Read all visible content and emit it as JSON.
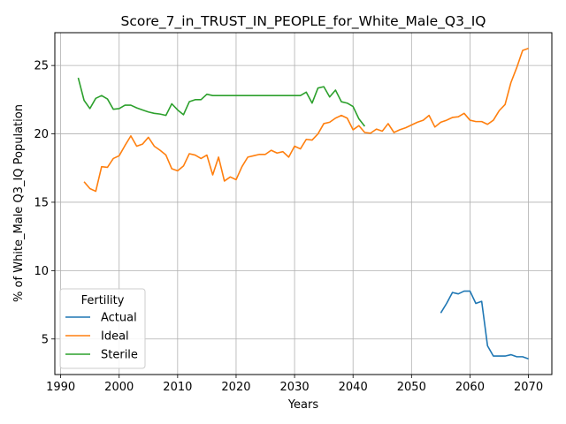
{
  "chart_data": {
    "type": "line",
    "title": "Score_7_in_TRUST_IN_PEOPLE_for_White_Male_Q3_IQ",
    "xlabel": "Years",
    "ylabel": "% of White_Male Q3_IQ Population",
    "xlim": [
      1989,
      2074
    ],
    "ylim": [
      2.4,
      27.4
    ],
    "xticks": [
      1990,
      2000,
      2010,
      2020,
      2030,
      2040,
      2050,
      2060,
      2070
    ],
    "yticks": [
      5,
      10,
      15,
      20,
      25
    ],
    "grid": true,
    "legend": {
      "title": "Fertility",
      "placement": "lower-left"
    },
    "series": [
      {
        "name": "Actual",
        "color": "#1f77b4",
        "points": [
          [
            2055,
            6.9
          ],
          [
            2056,
            7.6
          ],
          [
            2057,
            8.4
          ],
          [
            2058,
            8.3
          ],
          [
            2059,
            8.5
          ],
          [
            2060,
            8.5
          ],
          [
            2061,
            7.6
          ],
          [
            2062,
            7.75
          ],
          [
            2063,
            4.5
          ],
          [
            2064,
            3.75
          ],
          [
            2065,
            3.75
          ],
          [
            2066,
            3.75
          ],
          [
            2067,
            3.85
          ],
          [
            2068,
            3.7
          ],
          [
            2069,
            3.7
          ],
          [
            2070,
            3.55
          ]
        ]
      },
      {
        "name": "Ideal",
        "color": "#ff7f0e",
        "points": [
          [
            1994,
            16.5
          ],
          [
            1995,
            16.0
          ],
          [
            1996,
            15.8
          ],
          [
            1997,
            17.6
          ],
          [
            1998,
            17.55
          ],
          [
            1999,
            18.2
          ],
          [
            2000,
            18.4
          ],
          [
            2001,
            19.15
          ],
          [
            2002,
            19.85
          ],
          [
            2003,
            19.1
          ],
          [
            2004,
            19.25
          ],
          [
            2005,
            19.75
          ],
          [
            2006,
            19.1
          ],
          [
            2007,
            18.8
          ],
          [
            2008,
            18.45
          ],
          [
            2009,
            17.45
          ],
          [
            2010,
            17.3
          ],
          [
            2011,
            17.65
          ],
          [
            2012,
            18.55
          ],
          [
            2013,
            18.45
          ],
          [
            2014,
            18.2
          ],
          [
            2015,
            18.45
          ],
          [
            2016,
            17.0
          ],
          [
            2017,
            18.3
          ],
          [
            2018,
            16.55
          ],
          [
            2019,
            16.85
          ],
          [
            2020,
            16.65
          ],
          [
            2021,
            17.6
          ],
          [
            2022,
            18.3
          ],
          [
            2023,
            18.4
          ],
          [
            2024,
            18.5
          ],
          [
            2025,
            18.5
          ],
          [
            2026,
            18.8
          ],
          [
            2027,
            18.6
          ],
          [
            2028,
            18.7
          ],
          [
            2029,
            18.3
          ],
          [
            2030,
            19.1
          ],
          [
            2031,
            18.9
          ],
          [
            2032,
            19.6
          ],
          [
            2033,
            19.55
          ],
          [
            2034,
            20.0
          ],
          [
            2035,
            20.75
          ],
          [
            2036,
            20.85
          ],
          [
            2037,
            21.15
          ],
          [
            2038,
            21.35
          ],
          [
            2039,
            21.15
          ],
          [
            2040,
            20.3
          ],
          [
            2041,
            20.6
          ],
          [
            2042,
            20.1
          ],
          [
            2043,
            20.05
          ],
          [
            2044,
            20.35
          ],
          [
            2045,
            20.2
          ],
          [
            2046,
            20.75
          ],
          [
            2047,
            20.1
          ],
          [
            2048,
            20.3
          ],
          [
            2049,
            20.45
          ],
          [
            2050,
            20.65
          ],
          [
            2051,
            20.85
          ],
          [
            2052,
            21.0
          ],
          [
            2053,
            21.35
          ],
          [
            2054,
            20.5
          ],
          [
            2055,
            20.85
          ],
          [
            2056,
            21.0
          ],
          [
            2057,
            21.2
          ],
          [
            2058,
            21.25
          ],
          [
            2059,
            21.5
          ],
          [
            2060,
            21.0
          ],
          [
            2061,
            20.9
          ],
          [
            2062,
            20.9
          ],
          [
            2063,
            20.7
          ],
          [
            2064,
            21.0
          ],
          [
            2065,
            21.7
          ],
          [
            2066,
            22.15
          ],
          [
            2067,
            23.75
          ],
          [
            2068,
            24.85
          ],
          [
            2069,
            26.1
          ],
          [
            2070,
            26.25
          ]
        ]
      },
      {
        "name": "Sterile",
        "color": "#2ca02c",
        "points": [
          [
            1993,
            24.1
          ],
          [
            1994,
            22.45
          ],
          [
            1995,
            21.85
          ],
          [
            1996,
            22.6
          ],
          [
            1997,
            22.8
          ],
          [
            1998,
            22.55
          ],
          [
            1999,
            21.8
          ],
          [
            2000,
            21.85
          ],
          [
            2001,
            22.1
          ],
          [
            2002,
            22.1
          ],
          [
            2003,
            21.9
          ],
          [
            2004,
            21.75
          ],
          [
            2005,
            21.6
          ],
          [
            2006,
            21.5
          ],
          [
            2007,
            21.45
          ],
          [
            2008,
            21.35
          ],
          [
            2009,
            22.2
          ],
          [
            2010,
            21.75
          ],
          [
            2011,
            21.4
          ],
          [
            2012,
            22.35
          ],
          [
            2013,
            22.5
          ],
          [
            2014,
            22.5
          ],
          [
            2015,
            22.9
          ],
          [
            2016,
            22.8
          ],
          [
            2017,
            22.8
          ],
          [
            2018,
            22.8
          ],
          [
            2019,
            22.8
          ],
          [
            2020,
            22.8
          ],
          [
            2021,
            22.8
          ],
          [
            2022,
            22.8
          ],
          [
            2023,
            22.8
          ],
          [
            2024,
            22.8
          ],
          [
            2025,
            22.8
          ],
          [
            2026,
            22.8
          ],
          [
            2027,
            22.8
          ],
          [
            2028,
            22.8
          ],
          [
            2029,
            22.8
          ],
          [
            2030,
            22.8
          ],
          [
            2031,
            22.8
          ],
          [
            2032,
            23.05
          ],
          [
            2033,
            22.25
          ],
          [
            2034,
            23.35
          ],
          [
            2035,
            23.45
          ],
          [
            2036,
            22.7
          ],
          [
            2037,
            23.2
          ],
          [
            2038,
            22.35
          ],
          [
            2039,
            22.25
          ],
          [
            2040,
            22.0
          ],
          [
            2041,
            21.1
          ],
          [
            2042,
            20.55
          ]
        ]
      }
    ]
  }
}
